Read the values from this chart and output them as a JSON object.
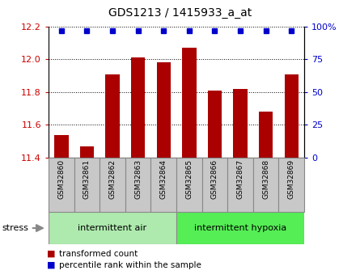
{
  "title": "GDS1213 / 1415933_a_at",
  "samples": [
    "GSM32860",
    "GSM32861",
    "GSM32862",
    "GSM32863",
    "GSM32864",
    "GSM32865",
    "GSM32866",
    "GSM32867",
    "GSM32868",
    "GSM32869"
  ],
  "bar_values": [
    11.54,
    11.47,
    11.91,
    12.01,
    11.98,
    12.07,
    11.81,
    11.82,
    11.68,
    11.91
  ],
  "percentile_values": [
    100,
    100,
    100,
    100,
    100,
    100,
    100,
    100,
    100,
    100
  ],
  "bar_color": "#aa0000",
  "percentile_color": "#0000cc",
  "ylim_left": [
    11.4,
    12.2
  ],
  "ylim_right": [
    0,
    100
  ],
  "yticks_left": [
    11.4,
    11.6,
    11.8,
    12.0,
    12.2
  ],
  "yticks_right": [
    0,
    25,
    50,
    75,
    100
  ],
  "ytick_labels_right": [
    "0",
    "25",
    "50",
    "75",
    "100%"
  ],
  "group1_label": "intermittent air",
  "group2_label": "intermittent hypoxia",
  "group1_color": "#aeeaae",
  "group2_color": "#55ee55",
  "stress_label": "stress",
  "legend_bar_label": "transformed count",
  "legend_pct_label": "percentile rank within the sample",
  "bar_width": 0.55,
  "tick_color_left": "#cc0000",
  "tick_color_right": "#0000cc",
  "xlabel_bg": "#c8c8c8",
  "xlabel_edge": "#888888"
}
